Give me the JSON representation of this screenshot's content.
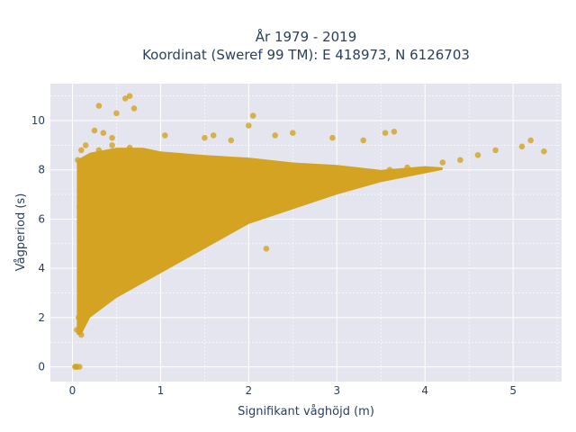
{
  "chart_data": {
    "type": "scatter",
    "title_line1": "År 1979 - 2019",
    "title_line2": "Koordinat (Sweref 99 TM): E 418973, N 6126703",
    "xlabel": "Signifikant våghöjd (m)",
    "ylabel": "Vågperiod (s)",
    "xlim": [
      -0.25,
      5.55
    ],
    "ylim": [
      -0.6,
      11.5
    ],
    "xticks": [
      0,
      1,
      2,
      3,
      4,
      5
    ],
    "yticks": [
      0,
      2,
      4,
      6,
      8,
      10
    ],
    "grid": true,
    "legend": "none",
    "marker_color": "#d4a321",
    "background_color": "#e5e5f0",
    "series": [
      {
        "x": [
          0.04,
          0.05,
          0.06,
          0.07,
          0.08,
          0.1,
          0.12,
          0.15,
          0.18,
          0.2,
          0.25,
          0.3,
          0.35,
          0.4,
          0.45,
          0.5,
          0.55,
          0.6,
          0.65,
          0.7,
          0.75,
          0.8,
          0.9,
          1.0,
          1.1,
          1.2,
          1.3,
          1.4,
          1.5,
          1.6,
          1.7,
          1.8,
          1.9,
          2.0,
          2.2,
          2.4,
          2.6,
          2.8,
          3.0,
          3.2,
          3.4,
          3.6,
          3.8,
          4.0,
          4.2,
          4.4,
          4.6,
          4.8,
          5.1,
          5.2,
          5.35,
          0.25,
          0.3,
          0.5,
          0.6,
          0.7,
          0.65,
          1.05,
          2.05,
          2.0,
          2.3,
          2.5,
          2.95,
          3.3,
          3.55,
          3.65,
          1.5,
          1.6,
          1.8,
          2.2,
          0.35,
          0.45,
          0.15,
          0.1,
          0.03,
          0.05,
          0.08
        ],
        "y": [
          0.0,
          1.5,
          8.4,
          2.0,
          6.5,
          1.3,
          5.8,
          4.2,
          7.0,
          2.4,
          3.0,
          8.8,
          3.5,
          6.0,
          9.0,
          4.5,
          7.5,
          5.2,
          8.9,
          4.0,
          6.4,
          5.5,
          7.8,
          5.0,
          6.8,
          5.3,
          7.2,
          5.6,
          6.9,
          6.0,
          7.4,
          6.3,
          7.6,
          6.5,
          6.9,
          7.0,
          7.3,
          7.4,
          7.6,
          7.7,
          7.9,
          8.0,
          8.1,
          8.0,
          8.3,
          8.4,
          8.6,
          8.8,
          8.95,
          9.2,
          8.75,
          9.6,
          10.6,
          10.3,
          10.9,
          10.5,
          11.0,
          9.4,
          10.2,
          9.8,
          9.4,
          9.5,
          9.3,
          9.2,
          9.5,
          9.55,
          9.3,
          9.4,
          9.2,
          4.8,
          9.5,
          9.3,
          9.0,
          8.8,
          0.0,
          0.0,
          0.0
        ]
      }
    ]
  }
}
